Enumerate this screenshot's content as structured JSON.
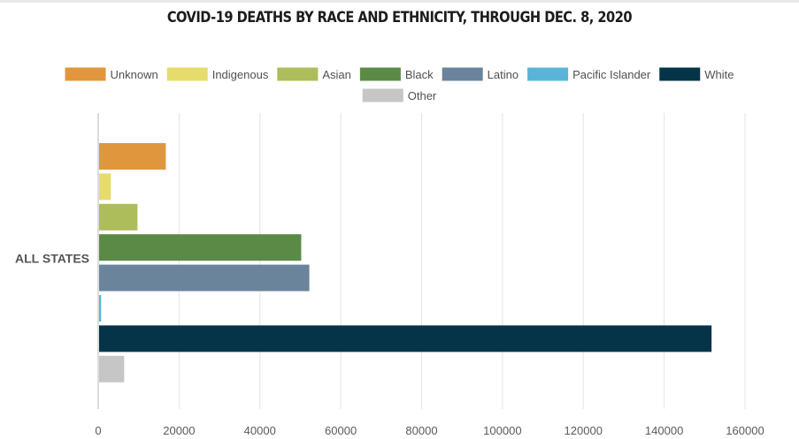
{
  "chart_data": {
    "type": "bar",
    "orientation": "horizontal",
    "title": "COVID-19 DEATHS BY RACE AND ETHNICITY, THROUGH DEC. 8, 2020",
    "categories": [
      "ALL STATES"
    ],
    "series": [
      {
        "name": "Unknown",
        "color": "#e0963d",
        "values": [
          16500
        ]
      },
      {
        "name": "Indigenous",
        "color": "#e5dc6c",
        "values": [
          2900
        ]
      },
      {
        "name": "Asian",
        "color": "#adbd5b",
        "values": [
          9500
        ]
      },
      {
        "name": "Black",
        "color": "#5b8a47",
        "values": [
          50000
        ]
      },
      {
        "name": "Latino",
        "color": "#6a849c",
        "values": [
          52000
        ]
      },
      {
        "name": "Pacific Islander",
        "color": "#5ab4d9",
        "values": [
          500
        ]
      },
      {
        "name": "White",
        "color": "#053449",
        "values": [
          151500
        ]
      },
      {
        "name": "Other",
        "color": "#c6c6c6",
        "values": [
          6200
        ]
      }
    ],
    "xlim": [
      0,
      160000
    ],
    "xticks": [
      0,
      20000,
      40000,
      60000,
      80000,
      100000,
      120000,
      140000,
      160000
    ],
    "xtick_labels": [
      "0",
      "20000",
      "40000",
      "60000",
      "80000",
      "100000",
      "120000",
      "140000",
      "160000"
    ],
    "grid": true,
    "legend_position": "top"
  }
}
